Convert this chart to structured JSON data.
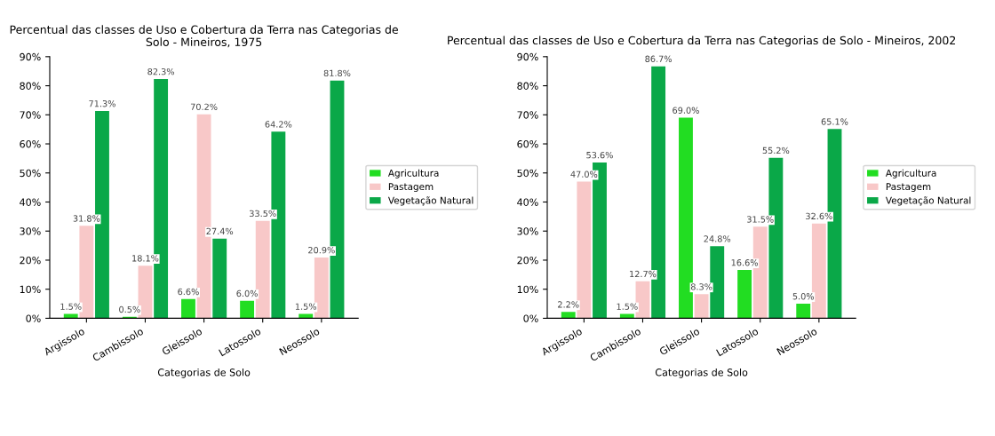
{
  "chart_data": [
    {
      "type": "bar",
      "title": "Percentual das classes de Uso e Cobertura da Terra nas Categorias de Solo - Mineiros, 1975",
      "xlabel": "Categorias de Solo",
      "categories": [
        "Argissolo",
        "Cambissolo",
        "Gleissolo",
        "Latossolo",
        "Neossolo"
      ],
      "series": [
        {
          "name": "Agricultura",
          "color": "#22dd22",
          "values": [
            1.5,
            0.5,
            6.6,
            6.0,
            1.5
          ],
          "value_labels": [
            "1.5%",
            "0.5%",
            "6.6%",
            "6.0%",
            "1.5%"
          ]
        },
        {
          "name": "Pastagem",
          "color": "#f8c8c8",
          "values": [
            31.8,
            18.1,
            70.2,
            33.5,
            20.9
          ],
          "value_labels": [
            "31.8%",
            "18.1%",
            "70.2%",
            "33.5%",
            "20.9%"
          ]
        },
        {
          "name": "Vegetação Natural",
          "color": "#0aa848",
          "values": [
            71.3,
            82.3,
            27.4,
            64.2,
            81.8
          ],
          "value_labels": [
            "71.3%",
            "82.3%",
            "27.4%",
            "64.2%",
            "81.8%"
          ]
        }
      ],
      "ylim": [
        0,
        90
      ],
      "yticks": [
        {
          "value": 0,
          "label": "0%"
        },
        {
          "value": 10,
          "label": "10%"
        },
        {
          "value": 20,
          "label": "20%"
        },
        {
          "value": 30,
          "label": "30%"
        },
        {
          "value": 40,
          "label": "40%"
        },
        {
          "value": 50,
          "label": "50%"
        },
        {
          "value": 60,
          "label": "60%"
        },
        {
          "value": 70,
          "label": "70%"
        },
        {
          "value": 80,
          "label": "80%"
        },
        {
          "value": 90,
          "label": "90%"
        }
      ],
      "legend": "right",
      "grid": false
    },
    {
      "type": "bar",
      "title": "Percentual das classes de Uso e Cobertura da Terra nas Categorias de Solo - Mineiros, 2002",
      "xlabel": "Categorias de Solo",
      "categories": [
        "Argissolo",
        "Cambissolo",
        "Gleissolo",
        "Latossolo",
        "Neossolo"
      ],
      "series": [
        {
          "name": "Agricultura",
          "color": "#22dd22",
          "values": [
            2.2,
            1.5,
            69.0,
            16.6,
            5.0
          ],
          "value_labels": [
            "2.2%",
            "1.5%",
            "69.0%",
            "16.6%",
            "5.0%"
          ]
        },
        {
          "name": "Pastagem",
          "color": "#f8c8c8",
          "values": [
            47.0,
            12.7,
            8.3,
            31.5,
            32.6
          ],
          "value_labels": [
            "47.0%",
            "12.7%",
            "8.3%",
            "31.5%",
            "32.6%"
          ]
        },
        {
          "name": "Vegetação Natural",
          "color": "#0aa848",
          "values": [
            53.6,
            86.7,
            24.8,
            55.2,
            65.1
          ],
          "value_labels": [
            "53.6%",
            "86.7%",
            "24.8%",
            "55.2%",
            "65.1%"
          ]
        }
      ],
      "ylim": [
        0,
        90
      ],
      "yticks": [
        {
          "value": 0,
          "label": "0%"
        },
        {
          "value": 10,
          "label": "10%"
        },
        {
          "value": 20,
          "label": "20%"
        },
        {
          "value": 30,
          "label": "30%"
        },
        {
          "value": 40,
          "label": "40%"
        },
        {
          "value": 50,
          "label": "50%"
        },
        {
          "value": 60,
          "label": "60%"
        },
        {
          "value": 70,
          "label": "70%"
        },
        {
          "value": 80,
          "label": "80%"
        },
        {
          "value": 90,
          "label": "90%"
        }
      ],
      "legend": "right",
      "grid": false
    }
  ]
}
